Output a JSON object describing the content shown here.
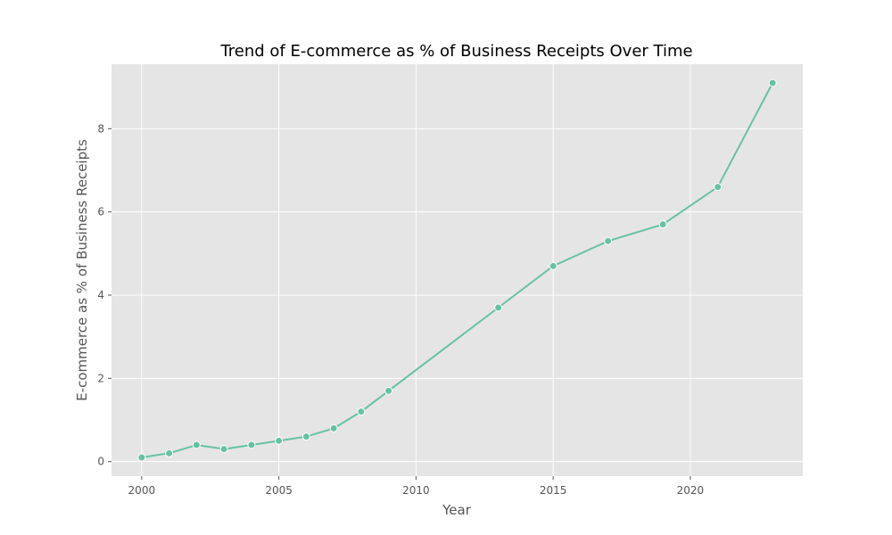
{
  "chart_data": {
    "type": "line",
    "title": "Trend of E-commerce as % of Business Receipts Over Time",
    "xlabel": "Year",
    "ylabel": "E-commerce as % of Business Receipts",
    "x": [
      2000,
      2001,
      2002,
      2003,
      2004,
      2005,
      2006,
      2007,
      2008,
      2009,
      2013,
      2015,
      2017,
      2019,
      2021,
      2023
    ],
    "series": [
      {
        "values": [
          0.1,
          0.2,
          0.4,
          0.3,
          0.4,
          0.5,
          0.6,
          0.8,
          1.2,
          1.7,
          3.7,
          4.7,
          5.3,
          5.7,
          6.6,
          9.1
        ]
      }
    ],
    "xlim": [
      1998.9,
      2024.1
    ],
    "ylim": [
      -0.35,
      9.55
    ],
    "xticks": [
      "2000",
      "2005",
      "2010",
      "2015",
      "2020"
    ],
    "yticks": [
      "0",
      "2",
      "4",
      "6",
      "8"
    ],
    "grid": true,
    "colors": {
      "line": "#66c2a5",
      "plot_background": "#e5e5e5",
      "grid": "#ffffff"
    }
  }
}
